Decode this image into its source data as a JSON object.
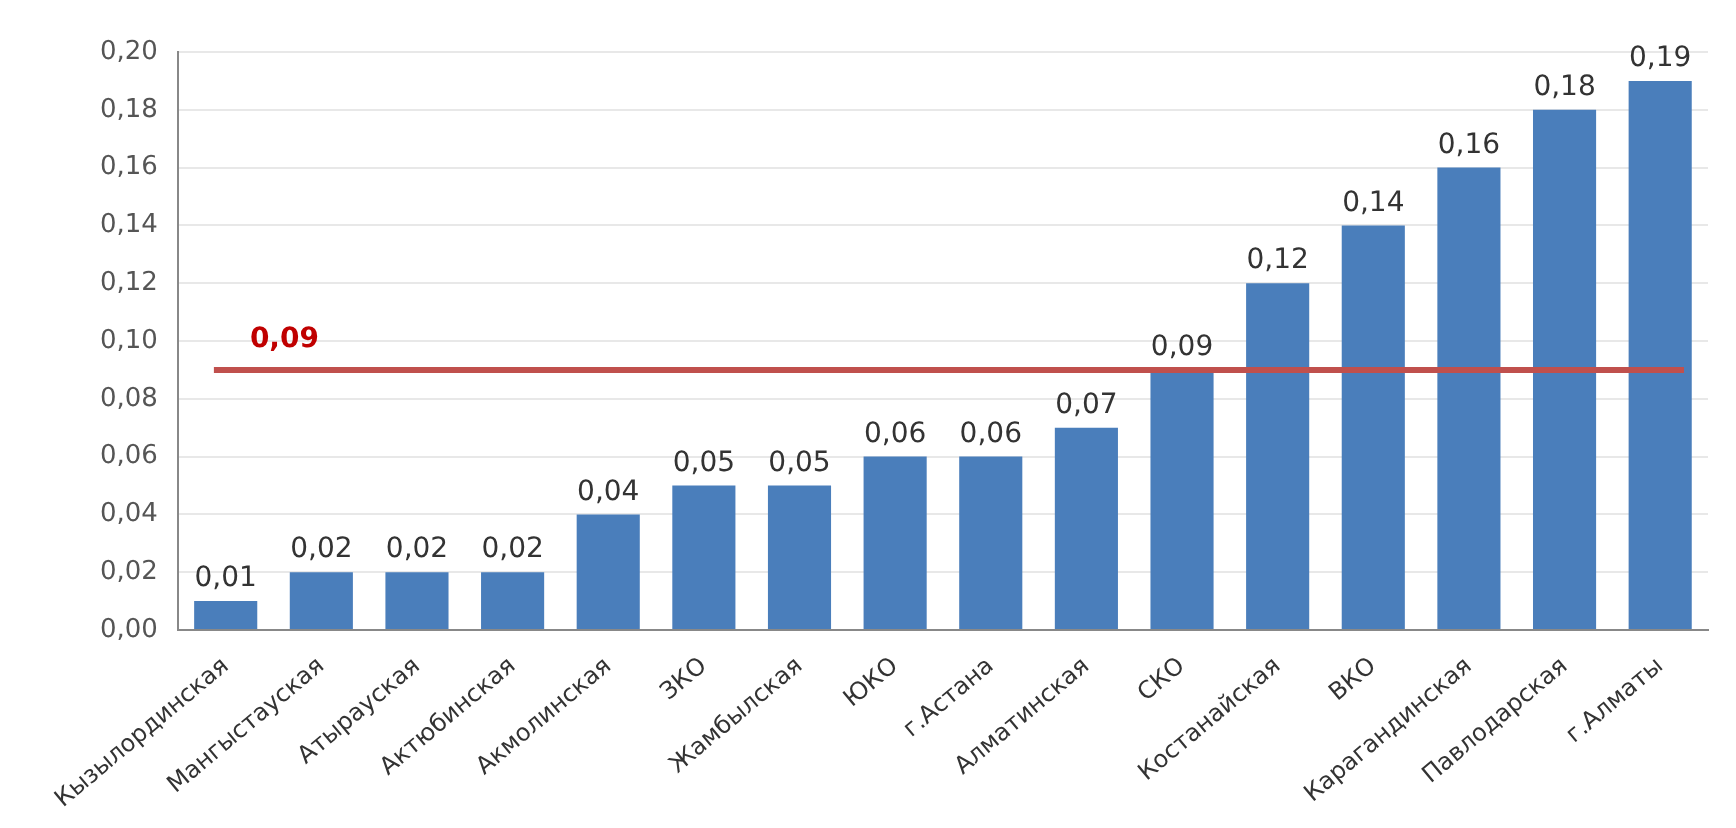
{
  "chart_data": {
    "type": "bar",
    "categories": [
      "Кызылординская",
      "Мангыстауская",
      "Атырауская",
      "Актюбинская",
      "Акмолинская",
      "ЗКО",
      "Жамбылская",
      "ЮКО",
      "г.Астана",
      "Алматинская",
      "СКО",
      "Костанайская",
      "ВКО",
      "Карагандинская",
      "Павлодарская",
      "г.Алматы"
    ],
    "values": [
      0.01,
      0.02,
      0.02,
      0.02,
      0.04,
      0.05,
      0.05,
      0.06,
      0.06,
      0.07,
      0.09,
      0.12,
      0.14,
      0.16,
      0.18,
      0.19
    ],
    "value_labels": [
      "0,01",
      "0,02",
      "0,02",
      "0,02",
      "0,04",
      "0,05",
      "0,05",
      "0,06",
      "0,06",
      "0,07",
      "0,09",
      "0,12",
      "0,14",
      "0,16",
      "0,18",
      "0,19"
    ],
    "color": "#4a7ebb",
    "ylim": [
      0,
      0.2
    ],
    "yticks": [
      {
        "value": 0,
        "label": "0,00"
      },
      {
        "value": 0.02,
        "label": "0,02"
      },
      {
        "value": 0.04,
        "label": "0,04"
      },
      {
        "value": 0.06,
        "label": "0,06"
      },
      {
        "value": 0.08,
        "label": "0,08"
      },
      {
        "value": 0.1,
        "label": "0,10"
      },
      {
        "value": 0.12,
        "label": "0,12"
      },
      {
        "value": 0.14,
        "label": "0,14"
      },
      {
        "value": 0.16,
        "label": "0,16"
      },
      {
        "value": 0.18,
        "label": "0,18"
      },
      {
        "value": 0.2,
        "label": "0,20"
      }
    ],
    "grid": "y",
    "legend": false,
    "ref_lines": [
      {
        "axis": "y",
        "value": 0.09,
        "label": "0,09",
        "color": "#c0504d"
      }
    ]
  }
}
